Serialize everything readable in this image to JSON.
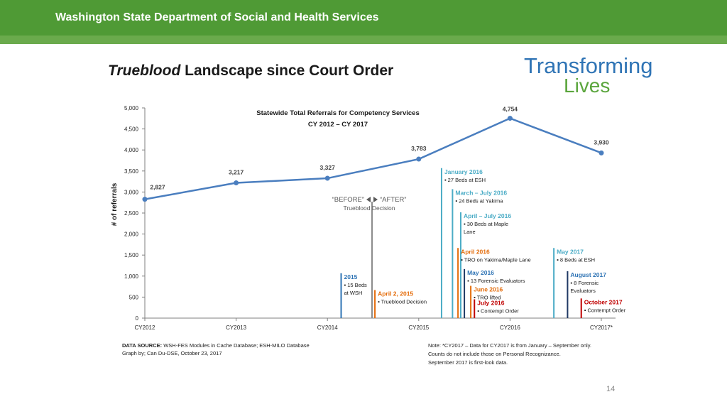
{
  "header": {
    "title": "Washington State Department of Social and Health Services"
  },
  "slide": {
    "title_italic": "Trueblood",
    "title_rest": " Landscape since Court Order"
  },
  "logo": {
    "line1": "Transforming",
    "line2": "Lives"
  },
  "chart_data": {
    "type": "line",
    "title": "Statewide Total Referrals for Competency Services",
    "subtitle": "CY 2012 – CY 2017",
    "ylabel": "# of referrals",
    "xlabel": "",
    "ylim": [
      0,
      5000
    ],
    "yticks": [
      0,
      500,
      1000,
      1500,
      2000,
      2500,
      3000,
      3500,
      4000,
      4500,
      5000
    ],
    "ytick_labels": [
      "0",
      "500",
      "1,000",
      "1,500",
      "2,000",
      "2,500",
      "3,000",
      "3,500",
      "4,000",
      "4,500",
      "5,000"
    ],
    "categories": [
      "CY2012",
      "CY2013",
      "CY2014",
      "CY2015",
      "CY2016",
      "CY2017*"
    ],
    "values": [
      2827,
      3217,
      3327,
      3783,
      4754,
      3930
    ],
    "value_labels": [
      "2,827",
      "3,217",
      "3,327",
      "3,783",
      "4,754",
      "3,930"
    ],
    "series_color": "#4a7ebf",
    "before_after": {
      "before": "“BEFORE”",
      "after": "“AFTER”",
      "caption": "Trueblood Decision"
    },
    "annotations": [
      {
        "x": 2.15,
        "top": 1000,
        "color": "#2f74b5",
        "head_color": "#2f74b5",
        "head": "2015",
        "lines": [
          "▪ 15 Beds",
          "   at WSH"
        ]
      },
      {
        "x": 2.52,
        "top": 600,
        "color": "#e46c0a",
        "head_color": "#e46c0a",
        "head": "April 2, 2015",
        "lines": [
          "▪ Trueblood Decision"
        ]
      },
      {
        "x": 3.25,
        "top": 3500,
        "color": "#4bacc6",
        "head_color": "#4bacc6",
        "head": "January 2016",
        "lines": [
          "▪ 27 Beds at ESH"
        ]
      },
      {
        "x": 3.37,
        "top": 3000,
        "color": "#4bacc6",
        "head_color": "#4bacc6",
        "head": "March – July 2016",
        "lines": [
          "▪ 24 Beds at Yakima"
        ]
      },
      {
        "x": 3.46,
        "top": 2450,
        "color": "#4bacc6",
        "head_color": "#4bacc6",
        "head": "April – July 2016",
        "lines": [
          "▪ 30 Beds at Maple",
          "   Lane"
        ]
      },
      {
        "x": 3.43,
        "top": 1600,
        "color": "#e46c0a",
        "head_color": "#e46c0a",
        "head": "April 2016",
        "lines": [
          "▪ TRO on Yakima/Maple Lane"
        ]
      },
      {
        "x": 3.5,
        "top": 1100,
        "color": "#1f3864",
        "head_color": "#2f74b5",
        "head": "May 2016",
        "lines": [
          "▪ 13 Forensic Evaluators"
        ]
      },
      {
        "x": 3.57,
        "top": 700,
        "color": "#e46c0a",
        "head_color": "#e46c0a",
        "head": "June 2016",
        "lines": [
          "▪ TRO lifted"
        ]
      },
      {
        "x": 3.61,
        "top": 380,
        "color": "#c00000",
        "head_color": "#c00000",
        "head": "July 2016",
        "lines": [
          "▪ Contempt Order"
        ]
      },
      {
        "x": 4.48,
        "top": 1600,
        "color": "#4bacc6",
        "head_color": "#4bacc6",
        "head": "May 2017",
        "lines": [
          "▪ 8 Beds at ESH"
        ]
      },
      {
        "x": 4.63,
        "top": 1050,
        "color": "#1f3864",
        "head_color": "#2f74b5",
        "head": "August 2017",
        "lines": [
          "▪ 8 Forensic",
          "   Evaluators"
        ]
      },
      {
        "x": 4.78,
        "top": 400,
        "color": "#c00000",
        "head_color": "#c00000",
        "head": "October 2017",
        "lines": [
          "▪ Contempt Order"
        ]
      }
    ]
  },
  "footer": {
    "source_label": "DATA SOURCE:",
    "source_text": " WSH-FES Modules in Cache Database; ESH-MILO Database",
    "graph_by": "Graph by; Can Du-DSE, October 23, 2017",
    "note1": "Note: *CY2017 – Data for CY2017 is from January – September only.",
    "note2": "Counts do not include those on Personal Recognizance.",
    "note3": "September 2017 is first-look data."
  },
  "page_number": "14"
}
